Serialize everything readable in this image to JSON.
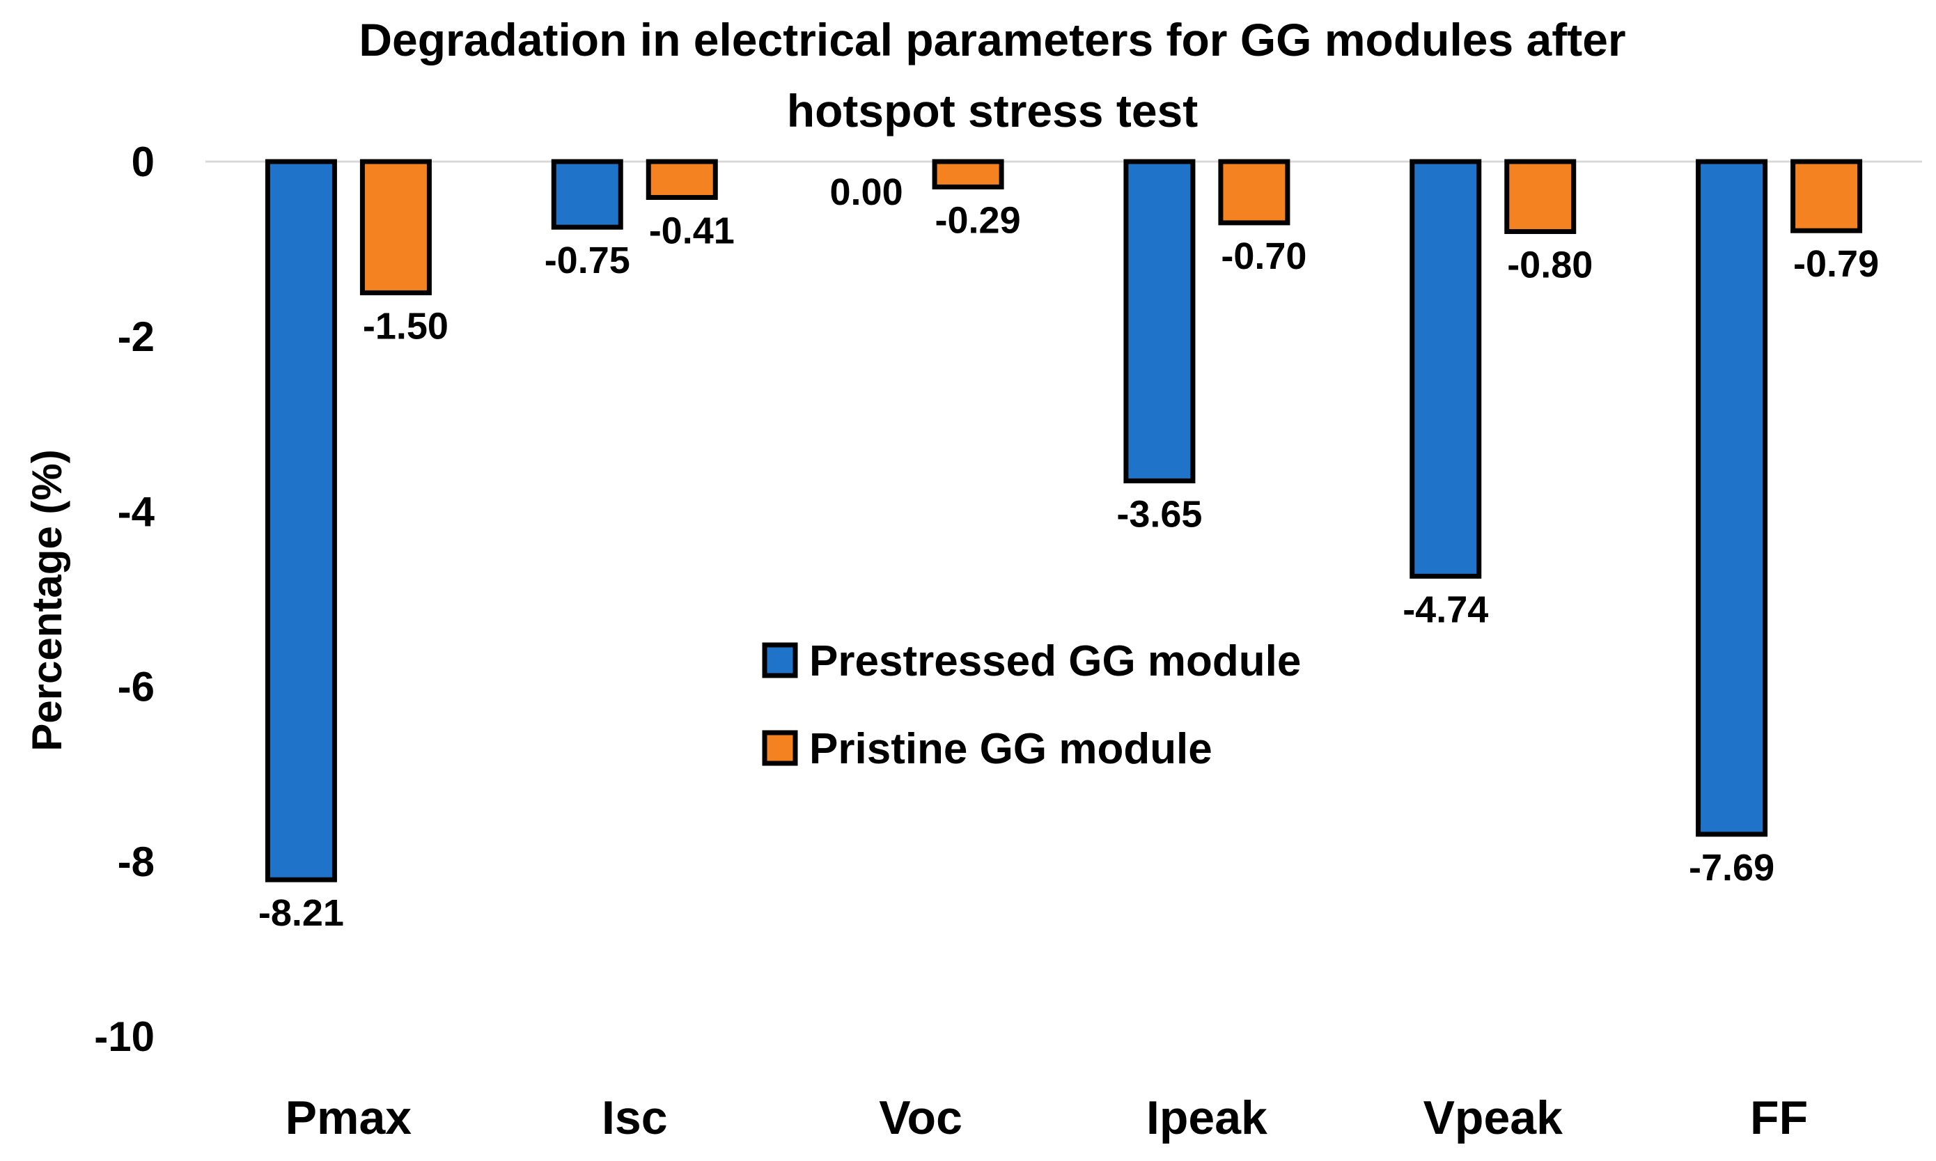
{
  "chart_data": {
    "type": "bar",
    "title": [
      "Degradation in electrical parameters for GG modules after",
      "hotspot stress test"
    ],
    "xlabel": "",
    "ylabel": "Percentage (%)",
    "ylim": [
      -10,
      0
    ],
    "yticks": [
      0,
      -2,
      -4,
      -6,
      -8,
      -10
    ],
    "categories": [
      "Pmax",
      "Isc",
      "Voc",
      "Ipeak",
      "Vpeak",
      "FF"
    ],
    "series": [
      {
        "name": "Prestressed GG module",
        "color": "#1F73C8",
        "values": [
          -8.21,
          -0.75,
          0.0,
          -3.65,
          -4.74,
          -7.69
        ],
        "labels": [
          "-8.21",
          "-0.75",
          "0.00",
          "-3.65",
          "-4.74",
          "-7.69"
        ]
      },
      {
        "name": "Pristine GG module",
        "color": "#F58220",
        "values": [
          -1.5,
          -0.41,
          -0.29,
          -0.7,
          -0.8,
          -0.79
        ],
        "labels": [
          "-1.50",
          "-0.41",
          "-0.29",
          "-0.70",
          "-0.80",
          "-0.79"
        ]
      }
    ],
    "legend_position": "center-right",
    "grid": false
  }
}
